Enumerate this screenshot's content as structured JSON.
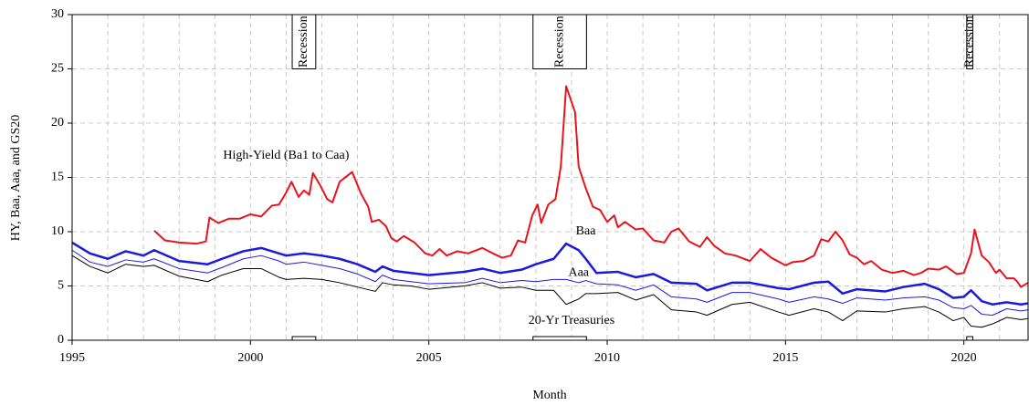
{
  "chart_data": {
    "type": "line",
    "x_label": "Month",
    "y_label": "HY, Baa, Aaa, and GS20",
    "xlim": [
      1995,
      2021.8
    ],
    "xticks": [
      1995,
      2000,
      2005,
      2010,
      2015,
      2020
    ],
    "ylim": [
      0,
      30
    ],
    "yticks": [
      0,
      5,
      10,
      15,
      20,
      25,
      30
    ],
    "grid": true,
    "recessions": [
      {
        "start": 2001.17,
        "end": 2001.83,
        "label": "Recession"
      },
      {
        "start": 2007.92,
        "end": 2009.42,
        "label": "Recession"
      },
      {
        "start": 2020.08,
        "end": 2020.25,
        "label": "Recession"
      }
    ],
    "series": [
      {
        "name": "High-Yield (Ba1 to Caa)",
        "color": "#e8141c",
        "width": 2,
        "x": [
          1997.3,
          1997.6,
          1998.0,
          1998.5,
          1998.75,
          1998.85,
          1999.1,
          1999.4,
          1999.7,
          2000.0,
          2000.3,
          2000.6,
          2000.8,
          2001.0,
          2001.15,
          2001.35,
          2001.5,
          2001.65,
          2001.75,
          2001.95,
          2002.15,
          2002.3,
          2002.5,
          2002.85,
          2003.1,
          2003.3,
          2003.4,
          2003.6,
          2003.8,
          2003.95,
          2004.1,
          2004.3,
          2004.6,
          2004.9,
          2005.1,
          2005.3,
          2005.5,
          2005.8,
          2006.1,
          2006.5,
          2006.8,
          2007.05,
          2007.3,
          2007.5,
          2007.7,
          2007.9,
          2008.05,
          2008.15,
          2008.35,
          2008.55,
          2008.7,
          2008.85,
          2009.1,
          2009.2,
          2009.4,
          2009.6,
          2009.8,
          2010.0,
          2010.2,
          2010.3,
          2010.5,
          2010.8,
          2011.0,
          2011.3,
          2011.6,
          2011.8,
          2012.0,
          2012.3,
          2012.6,
          2012.8,
          2013.0,
          2013.3,
          2013.6,
          2014.0,
          2014.3,
          2014.6,
          2015.0,
          2015.2,
          2015.5,
          2015.8,
          2016.0,
          2016.2,
          2016.4,
          2016.6,
          2016.8,
          2017.0,
          2017.2,
          2017.4,
          2017.7,
          2018.0,
          2018.3,
          2018.6,
          2018.8,
          2019.0,
          2019.3,
          2019.5,
          2019.8,
          2020.0,
          2020.2,
          2020.3,
          2020.5,
          2020.7,
          2020.9,
          2021.0,
          2021.2,
          2021.4,
          2021.5,
          2021.6,
          2021.8
        ],
        "values": [
          10.1,
          9.2,
          9.0,
          8.9,
          9.1,
          11.3,
          10.8,
          11.2,
          11.2,
          11.6,
          11.4,
          12.4,
          12.5,
          13.6,
          14.6,
          13.2,
          13.8,
          13.4,
          15.4,
          14.3,
          13.0,
          12.7,
          14.6,
          15.5,
          13.5,
          12.3,
          10.9,
          11.1,
          10.5,
          9.4,
          9.1,
          9.6,
          9.0,
          8.0,
          7.8,
          8.4,
          7.8,
          8.2,
          8.0,
          8.5,
          8.0,
          7.6,
          7.8,
          9.2,
          9.0,
          11.5,
          12.5,
          10.8,
          12.5,
          13.0,
          16.0,
          23.4,
          21.0,
          16.0,
          14.0,
          12.3,
          12.0,
          10.9,
          11.5,
          10.4,
          10.9,
          10.2,
          10.3,
          9.2,
          9.0,
          10.0,
          10.3,
          9.1,
          8.6,
          9.5,
          8.7,
          8.0,
          7.8,
          7.3,
          8.4,
          7.6,
          6.9,
          7.2,
          7.3,
          7.8,
          9.3,
          9.1,
          10.0,
          9.2,
          7.9,
          7.6,
          7.0,
          7.3,
          6.5,
          6.2,
          6.4,
          6.0,
          6.2,
          6.6,
          6.5,
          6.8,
          6.1,
          6.2,
          8.0,
          10.2,
          7.8,
          7.2,
          6.2,
          6.5,
          5.7,
          5.7,
          5.4,
          4.9,
          5.3
        ]
      },
      {
        "name": "Baa",
        "color": "#1a1adb",
        "width": 2.5,
        "x": [
          1995.0,
          1995.5,
          1996.0,
          1996.5,
          1997.0,
          1997.3,
          1998.0,
          1998.8,
          1999.2,
          1999.8,
          2000.3,
          2000.8,
          2001.0,
          2001.5,
          2002.0,
          2002.5,
          2003.0,
          2003.5,
          2003.7,
          2004.0,
          2004.5,
          2005.0,
          2006.0,
          2006.5,
          2007.0,
          2007.6,
          2008.0,
          2008.5,
          2008.85,
          2009.2,
          2009.4,
          2009.7,
          2010.3,
          2010.8,
          2011.3,
          2011.8,
          2012.5,
          2012.8,
          2013.5,
          2014.0,
          2014.8,
          2015.1,
          2015.8,
          2016.2,
          2016.6,
          2017.0,
          2017.8,
          2018.3,
          2018.9,
          2019.3,
          2019.7,
          2020.0,
          2020.2,
          2020.5,
          2020.8,
          2021.2,
          2021.6,
          2021.8
        ],
        "values": [
          9.0,
          8.0,
          7.5,
          8.2,
          7.8,
          8.3,
          7.3,
          7.0,
          7.5,
          8.2,
          8.5,
          8.0,
          7.8,
          8.0,
          7.8,
          7.5,
          7.0,
          6.3,
          6.8,
          6.4,
          6.2,
          6.0,
          6.3,
          6.6,
          6.2,
          6.5,
          7.0,
          7.5,
          8.9,
          8.3,
          7.5,
          6.2,
          6.3,
          5.8,
          6.1,
          5.3,
          5.2,
          4.6,
          5.3,
          5.3,
          4.8,
          4.7,
          5.3,
          5.4,
          4.3,
          4.7,
          4.5,
          4.9,
          5.2,
          4.7,
          3.9,
          4.0,
          4.6,
          3.6,
          3.3,
          3.5,
          3.3,
          3.4
        ]
      },
      {
        "name": "Aaa",
        "color": "#1a1adb",
        "width": 1,
        "x": [
          1995.0,
          1995.5,
          1996.0,
          1996.5,
          1997.0,
          1997.3,
          1998.0,
          1998.8,
          1999.2,
          1999.8,
          2000.3,
          2000.8,
          2001.0,
          2001.5,
          2002.0,
          2002.5,
          2003.0,
          2003.5,
          2003.7,
          2004.0,
          2004.5,
          2005.0,
          2006.0,
          2006.5,
          2007.0,
          2007.6,
          2008.0,
          2008.5,
          2008.85,
          2009.2,
          2009.4,
          2009.7,
          2010.3,
          2010.8,
          2011.3,
          2011.8,
          2012.5,
          2012.8,
          2013.5,
          2014.0,
          2014.8,
          2015.1,
          2015.8,
          2016.2,
          2016.6,
          2017.0,
          2017.8,
          2018.3,
          2018.9,
          2019.3,
          2019.7,
          2020.0,
          2020.2,
          2020.5,
          2020.8,
          2021.2,
          2021.6,
          2021.8
        ],
        "values": [
          8.3,
          7.2,
          6.8,
          7.4,
          7.2,
          7.5,
          6.6,
          6.2,
          6.7,
          7.5,
          7.8,
          7.3,
          7.0,
          7.2,
          6.9,
          6.6,
          6.1,
          5.4,
          6.0,
          5.6,
          5.4,
          5.2,
          5.3,
          5.7,
          5.3,
          5.5,
          5.4,
          5.6,
          5.6,
          5.3,
          5.5,
          5.2,
          5.1,
          4.6,
          5.1,
          4.0,
          3.8,
          3.5,
          4.4,
          4.4,
          3.8,
          3.5,
          4.0,
          3.8,
          3.4,
          3.9,
          3.7,
          3.9,
          4.0,
          3.7,
          3.0,
          2.9,
          3.2,
          2.4,
          2.3,
          2.9,
          2.7,
          2.8
        ]
      },
      {
        "name": "20-Yr Treasuries",
        "color": "#000000",
        "width": 1,
        "x": [
          1995.0,
          1995.5,
          1996.0,
          1996.5,
          1997.0,
          1997.3,
          1998.0,
          1998.8,
          1999.2,
          1999.8,
          2000.3,
          2000.8,
          2001.0,
          2001.5,
          2002.0,
          2002.5,
          2003.0,
          2003.5,
          2003.7,
          2004.0,
          2004.5,
          2005.0,
          2006.0,
          2006.5,
          2007.0,
          2007.6,
          2008.0,
          2008.5,
          2008.85,
          2009.2,
          2009.4,
          2009.7,
          2010.3,
          2010.8,
          2011.3,
          2011.8,
          2012.5,
          2012.8,
          2013.5,
          2014.0,
          2014.8,
          2015.1,
          2015.8,
          2016.2,
          2016.6,
          2017.0,
          2017.8,
          2018.3,
          2018.9,
          2019.3,
          2019.7,
          2020.0,
          2020.2,
          2020.5,
          2020.8,
          2021.2,
          2021.6,
          2021.8
        ],
        "values": [
          7.8,
          6.8,
          6.2,
          7.0,
          6.8,
          6.9,
          5.9,
          5.4,
          6.0,
          6.6,
          6.6,
          5.8,
          5.6,
          5.7,
          5.6,
          5.3,
          4.9,
          4.5,
          5.3,
          5.1,
          5.0,
          4.7,
          5.0,
          5.3,
          4.8,
          4.9,
          4.6,
          4.6,
          3.3,
          3.8,
          4.3,
          4.3,
          4.4,
          3.7,
          4.2,
          2.8,
          2.6,
          2.3,
          3.3,
          3.5,
          2.6,
          2.3,
          2.9,
          2.6,
          1.8,
          2.7,
          2.6,
          2.9,
          3.1,
          2.6,
          1.8,
          2.1,
          1.3,
          1.2,
          1.5,
          2.1,
          1.9,
          2.0
        ]
      }
    ]
  }
}
